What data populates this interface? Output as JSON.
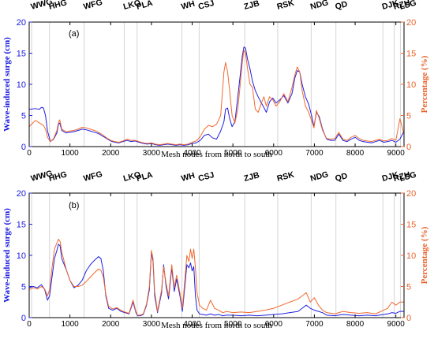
{
  "colors": {
    "surge": "#2020e0",
    "percentage": "#f06a30",
    "grid": "#c8c8c8",
    "axis": "#000000"
  },
  "chart_data": [
    {
      "type": "line",
      "panel_label": "(a)",
      "xlabel": "Mesh nodes from north to south",
      "ylabel_left": "Wave-induced surge (cm)",
      "ylabel_right": "Percentage (%)",
      "xlim": [
        0,
        9200
      ],
      "ylim_left": [
        0,
        20
      ],
      "ylim_right": [
        0,
        20
      ],
      "x_ticks": [
        0,
        1000,
        2000,
        3000,
        4000,
        5000,
        6000,
        7000,
        8000,
        9000
      ],
      "y_ticks": [
        0,
        5,
        10,
        15,
        20
      ],
      "stations": [
        {
          "name": "WWG",
          "x": 60
        },
        {
          "name": "HHG",
          "x": 500
        },
        {
          "name": "WFG",
          "x": 1350
        },
        {
          "name": "LKO",
          "x": 2330
        },
        {
          "name": "PLA",
          "x": 2650
        },
        {
          "name": "WH",
          "x": 3750
        },
        {
          "name": "CSJ",
          "x": 4170
        },
        {
          "name": "ZJB",
          "x": 5290
        },
        {
          "name": "RSK",
          "x": 6100
        },
        {
          "name": "NDG",
          "x": 6920
        },
        {
          "name": "QD",
          "x": 7530
        },
        {
          "name": "DJK",
          "x": 8680
        },
        {
          "name": "RZH",
          "x": 8960
        },
        {
          "name": "LSG",
          "x": 9110
        }
      ],
      "series": [
        {
          "name": "Wave-induced surge (cm)",
          "axis": "left",
          "x": [
            0,
            150,
            250,
            300,
            350,
            400,
            450,
            520,
            600,
            680,
            720,
            750,
            800,
            900,
            1000,
            1100,
            1200,
            1300,
            1400,
            1500,
            1600,
            1700,
            1800,
            1900,
            2000,
            2100,
            2200,
            2300,
            2400,
            2500,
            2600,
            2700,
            2800,
            2900,
            3000,
            3100,
            3200,
            3300,
            3400,
            3500,
            3600,
            3700,
            3800,
            3900,
            4000,
            4100,
            4200,
            4300,
            4400,
            4500,
            4600,
            4700,
            4780,
            4820,
            4870,
            4920,
            4980,
            5050,
            5120,
            5180,
            5230,
            5270,
            5310,
            5360,
            5420,
            5480,
            5550,
            5620,
            5700,
            5760,
            5820,
            5900,
            5980,
            6060,
            6150,
            6250,
            6350,
            6450,
            6520,
            6580,
            6640,
            6700,
            6780,
            6860,
            6930,
            6990,
            7050,
            7120,
            7200,
            7300,
            7400,
            7500,
            7600,
            7700,
            7800,
            7900,
            8000,
            8100,
            8200,
            8300,
            8400,
            8500,
            8600,
            8700,
            8800,
            8900,
            9000,
            9100,
            9200
          ],
          "values": [
            6.0,
            6.1,
            6.0,
            6.3,
            6.2,
            5.0,
            2.5,
            0.8,
            1.2,
            2.2,
            3.6,
            3.8,
            2.6,
            2.2,
            2.3,
            2.4,
            2.6,
            2.8,
            2.7,
            2.5,
            2.3,
            2.1,
            1.7,
            1.3,
            0.9,
            0.7,
            0.6,
            0.8,
            1.0,
            0.8,
            0.9,
            0.7,
            0.5,
            0.4,
            0.5,
            0.3,
            0.2,
            0.3,
            0.4,
            0.3,
            0.2,
            0.3,
            0.2,
            0.3,
            0.5,
            0.6,
            1.0,
            1.8,
            2.0,
            1.4,
            1.2,
            2.5,
            4.0,
            6.0,
            6.2,
            4.5,
            3.2,
            4.0,
            8.0,
            11.5,
            14.5,
            16.0,
            15.8,
            14.0,
            12.5,
            10.5,
            9.0,
            8.0,
            7.0,
            6.3,
            5.5,
            7.2,
            7.8,
            7.0,
            7.5,
            8.2,
            7.0,
            8.5,
            11.0,
            12.2,
            12.0,
            10.0,
            8.0,
            6.8,
            5.0,
            3.2,
            5.5,
            4.8,
            2.8,
            1.2,
            1.0,
            1.0,
            2.0,
            1.0,
            0.8,
            1.2,
            1.5,
            1.0,
            0.8,
            0.7,
            0.6,
            0.8,
            1.0,
            0.7,
            0.8,
            1.0,
            0.7,
            1.2,
            2.5
          ]
        },
        {
          "name": "Percentage (%)",
          "axis": "right",
          "x": [
            0,
            150,
            250,
            300,
            350,
            400,
            450,
            520,
            600,
            680,
            720,
            750,
            800,
            900,
            1000,
            1100,
            1200,
            1300,
            1400,
            1500,
            1600,
            1700,
            1800,
            1900,
            2000,
            2100,
            2200,
            2300,
            2400,
            2500,
            2600,
            2700,
            2800,
            2900,
            3000,
            3100,
            3200,
            3300,
            3400,
            3500,
            3600,
            3700,
            3800,
            3900,
            4000,
            4100,
            4200,
            4300,
            4400,
            4500,
            4600,
            4700,
            4780,
            4820,
            4870,
            4920,
            4980,
            5050,
            5120,
            5180,
            5230,
            5270,
            5310,
            5360,
            5420,
            5480,
            5550,
            5620,
            5700,
            5760,
            5820,
            5900,
            5980,
            6060,
            6150,
            6250,
            6350,
            6450,
            6520,
            6580,
            6640,
            6700,
            6780,
            6860,
            6930,
            6990,
            7050,
            7120,
            7200,
            7300,
            7400,
            7500,
            7600,
            7700,
            7800,
            7900,
            8000,
            8100,
            8200,
            8300,
            8400,
            8500,
            8600,
            8700,
            8800,
            8900,
            9000,
            9100,
            9200
          ],
          "values": [
            3.2,
            4.2,
            3.8,
            3.6,
            3.4,
            2.8,
            1.5,
            0.8,
            1.3,
            2.6,
            3.9,
            4.3,
            2.8,
            2.4,
            2.5,
            2.6,
            2.8,
            3.1,
            3.0,
            2.8,
            2.6,
            2.3,
            1.9,
            1.4,
            1.0,
            0.8,
            0.7,
            0.9,
            1.2,
            1.0,
            1.0,
            0.8,
            0.6,
            0.5,
            0.6,
            0.4,
            0.3,
            0.4,
            0.5,
            0.4,
            0.3,
            0.4,
            0.3,
            0.4,
            0.7,
            0.9,
            1.6,
            2.8,
            3.4,
            3.2,
            3.6,
            5.0,
            12.0,
            13.5,
            12.0,
            9.0,
            5.0,
            3.8,
            6.0,
            10.0,
            13.5,
            15.5,
            15.0,
            12.5,
            10.0,
            9.5,
            6.0,
            5.5,
            7.0,
            8.0,
            6.5,
            8.0,
            7.5,
            6.5,
            7.2,
            8.5,
            7.2,
            9.5,
            11.5,
            12.8,
            12.0,
            9.0,
            6.5,
            5.5,
            4.2,
            3.0,
            5.8,
            4.5,
            2.6,
            1.3,
            1.2,
            1.3,
            2.3,
            1.2,
            1.0,
            1.5,
            1.8,
            1.3,
            1.0,
            0.9,
            0.8,
            1.0,
            1.2,
            0.9,
            1.0,
            1.3,
            1.0,
            4.5,
            2.0
          ]
        }
      ]
    },
    {
      "type": "line",
      "panel_label": "(b)",
      "xlabel": "Mesh nodes from north to south",
      "ylabel_left": "Wave-induced surge (cm)",
      "ylabel_right": "Percentage (%)",
      "xlim": [
        0,
        9200
      ],
      "ylim_left": [
        0,
        20
      ],
      "ylim_right": [
        0,
        20
      ],
      "x_ticks": [
        0,
        1000,
        2000,
        3000,
        4000,
        5000,
        6000,
        7000,
        8000,
        9000
      ],
      "y_ticks": [
        0,
        5,
        10,
        15,
        20
      ],
      "stations": [
        {
          "name": "WWG",
          "x": 60
        },
        {
          "name": "HHG",
          "x": 500
        },
        {
          "name": "WFG",
          "x": 1350
        },
        {
          "name": "LKO",
          "x": 2330
        },
        {
          "name": "PLA",
          "x": 2650
        },
        {
          "name": "WH",
          "x": 3750
        },
        {
          "name": "CSJ",
          "x": 4170
        },
        {
          "name": "ZJB",
          "x": 5290
        },
        {
          "name": "RSK",
          "x": 6100
        },
        {
          "name": "NDG",
          "x": 6920
        },
        {
          "name": "QD",
          "x": 7530
        },
        {
          "name": "DJK",
          "x": 8680
        },
        {
          "name": "RZH",
          "x": 8960
        },
        {
          "name": "LSG",
          "x": 9110
        }
      ],
      "series": [
        {
          "name": "Wave-induced surge (cm)",
          "axis": "left",
          "x": [
            0,
            100,
            200,
            300,
            380,
            450,
            500,
            560,
            620,
            680,
            720,
            760,
            800,
            860,
            920,
            1000,
            1100,
            1200,
            1300,
            1400,
            1500,
            1600,
            1700,
            1760,
            1820,
            1880,
            1950,
            2050,
            2150,
            2250,
            2350,
            2450,
            2550,
            2620,
            2660,
            2720,
            2800,
            2880,
            2950,
            3000,
            3040,
            3080,
            3150,
            3250,
            3300,
            3360,
            3420,
            3500,
            3560,
            3620,
            3700,
            3760,
            3820,
            3870,
            3920,
            3960,
            4000,
            4040,
            4080,
            4120,
            4180,
            4260,
            4350,
            4450,
            4550,
            4650,
            4750,
            4850,
            5000,
            5200,
            5400,
            5600,
            5800,
            6000,
            6200,
            6400,
            6600,
            6700,
            6800,
            6900,
            7000,
            7100,
            7200,
            7300,
            7500,
            7700,
            7900,
            8100,
            8300,
            8500,
            8700,
            8800,
            8900,
            9000,
            9100,
            9200
          ],
          "values": [
            4.8,
            5.0,
            4.8,
            5.3,
            4.5,
            2.8,
            3.5,
            6.5,
            9.5,
            10.8,
            11.8,
            11.5,
            9.5,
            8.5,
            7.5,
            6.0,
            4.8,
            5.2,
            6.0,
            7.5,
            8.5,
            9.2,
            9.8,
            9.5,
            7.5,
            3.5,
            1.5,
            1.2,
            1.5,
            1.0,
            0.8,
            0.6,
            2.5,
            0.8,
            0.3,
            0.3,
            0.5,
            2.0,
            4.5,
            10.5,
            9.0,
            3.5,
            0.8,
            4.0,
            8.5,
            5.0,
            3.0,
            8.0,
            4.2,
            6.2,
            3.5,
            1.0,
            5.0,
            8.5,
            8.0,
            8.8,
            7.5,
            8.2,
            3.5,
            1.2,
            0.6,
            0.5,
            0.4,
            0.6,
            0.4,
            0.5,
            0.3,
            0.4,
            0.4,
            0.3,
            0.4,
            0.3,
            0.4,
            0.5,
            0.6,
            0.8,
            1.0,
            1.5,
            2.0,
            1.5,
            1.2,
            1.0,
            0.8,
            0.4,
            0.3,
            0.5,
            0.4,
            0.3,
            0.4,
            0.3,
            0.5,
            0.6,
            0.8,
            0.7,
            1.0,
            1.0
          ]
        },
        {
          "name": "Percentage (%)",
          "axis": "right",
          "x": [
            0,
            100,
            200,
            300,
            380,
            450,
            500,
            560,
            620,
            680,
            720,
            760,
            800,
            860,
            920,
            1000,
            1100,
            1200,
            1300,
            1400,
            1500,
            1600,
            1700,
            1760,
            1820,
            1880,
            1950,
            2050,
            2150,
            2250,
            2350,
            2450,
            2550,
            2620,
            2660,
            2720,
            2800,
            2880,
            2950,
            3000,
            3040,
            3080,
            3150,
            3250,
            3300,
            3360,
            3420,
            3500,
            3560,
            3620,
            3700,
            3760,
            3820,
            3870,
            3920,
            3960,
            4000,
            4040,
            4080,
            4120,
            4180,
            4260,
            4350,
            4450,
            4550,
            4650,
            4750,
            4850,
            5000,
            5200,
            5400,
            5600,
            5800,
            6000,
            6200,
            6400,
            6600,
            6700,
            6800,
            6900,
            7000,
            7100,
            7200,
            7300,
            7500,
            7700,
            7900,
            8100,
            8300,
            8500,
            8700,
            8800,
            8900,
            9000,
            9100,
            9200
          ],
          "values": [
            4.5,
            4.8,
            4.6,
            5.0,
            4.6,
            3.5,
            4.5,
            8.0,
            11.0,
            12.0,
            12.6,
            12.2,
            10.5,
            9.0,
            7.5,
            6.0,
            5.0,
            5.0,
            5.2,
            5.8,
            6.5,
            7.2,
            7.8,
            7.6,
            6.5,
            3.8,
            1.8,
            1.4,
            1.6,
            1.2,
            0.9,
            0.7,
            2.8,
            1.0,
            0.4,
            0.4,
            0.6,
            2.2,
            5.0,
            10.8,
            9.5,
            4.2,
            1.0,
            4.5,
            8.2,
            5.5,
            3.5,
            8.5,
            4.8,
            6.8,
            4.0,
            1.5,
            6.0,
            10.0,
            9.0,
            11.0,
            9.5,
            11.0,
            8.0,
            4.0,
            2.0,
            1.5,
            1.2,
            2.8,
            1.5,
            1.2,
            0.8,
            1.0,
            0.8,
            0.9,
            0.8,
            1.0,
            1.2,
            1.5,
            2.0,
            2.5,
            3.0,
            3.5,
            4.0,
            2.5,
            3.2,
            2.0,
            1.2,
            0.8,
            0.6,
            1.0,
            0.8,
            0.7,
            0.8,
            0.6,
            1.2,
            1.5,
            2.5,
            2.0,
            2.5,
            2.5
          ]
        }
      ]
    }
  ]
}
